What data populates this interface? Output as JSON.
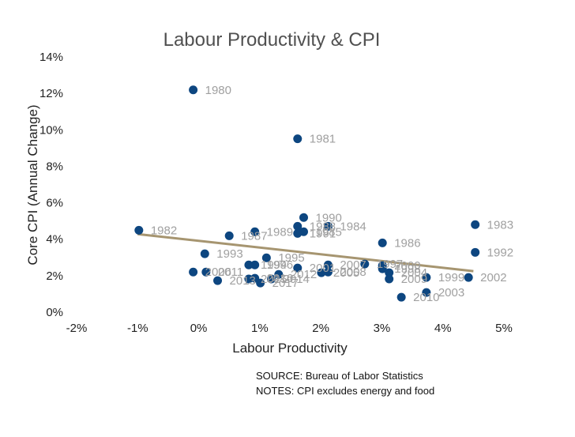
{
  "chart_data": {
    "type": "scatter",
    "title": "Labour Productivity & CPI",
    "xlabel": "Labour Productivity",
    "ylabel": "Core CPI (Annual Change)",
    "xlim": [
      -2,
      5
    ],
    "ylim": [
      0,
      14
    ],
    "xticks": [
      -2,
      -1,
      0,
      1,
      2,
      3,
      4,
      5
    ],
    "yticks": [
      0,
      2,
      4,
      6,
      8,
      10,
      12,
      14
    ],
    "xtick_labels": [
      "-2%",
      "-1%",
      "0%",
      "1%",
      "2%",
      "3%",
      "4%",
      "5%"
    ],
    "ytick_labels": [
      "0%",
      "2%",
      "4%",
      "6%",
      "8%",
      "10%",
      "12%",
      "14%"
    ],
    "grid": false,
    "point_color": "#0d4680",
    "label_color": "#a0a0a0",
    "trend_color": "#a69570",
    "trendline": {
      "x": [
        -1.0,
        4.5
      ],
      "y": [
        4.28,
        2.25
      ]
    },
    "points": [
      {
        "label": "1980",
        "x": -0.09,
        "y": 12.19
      },
      {
        "label": "1981",
        "x": 1.62,
        "y": 9.51
      },
      {
        "label": "1982",
        "x": -0.98,
        "y": 4.49
      },
      {
        "label": "1983",
        "x": 4.53,
        "y": 4.8
      },
      {
        "label": "1984",
        "x": 2.12,
        "y": 4.71
      },
      {
        "label": "1985",
        "x": 1.72,
        "y": 4.41
      },
      {
        "label": "1986",
        "x": 3.01,
        "y": 3.8
      },
      {
        "label": "1987",
        "x": 0.5,
        "y": 4.19
      },
      {
        "label": "1988",
        "x": 1.62,
        "y": 4.71
      },
      {
        "label": "1989",
        "x": 0.92,
        "y": 4.41
      },
      {
        "label": "1990",
        "x": 1.72,
        "y": 5.19
      },
      {
        "label": "1991",
        "x": 1.62,
        "y": 4.32
      },
      {
        "label": "1992",
        "x": 4.53,
        "y": 3.28
      },
      {
        "label": "1993",
        "x": 0.1,
        "y": 3.2
      },
      {
        "label": "1994",
        "x": 0.82,
        "y": 2.59
      },
      {
        "label": "1995",
        "x": 1.11,
        "y": 2.98
      },
      {
        "label": "1996",
        "x": 0.92,
        "y": 2.59
      },
      {
        "label": "1997",
        "x": 2.72,
        "y": 2.64
      },
      {
        "label": "1998",
        "x": 3.01,
        "y": 2.38
      },
      {
        "label": "1999",
        "x": 3.73,
        "y": 1.9
      },
      {
        "label": "2000",
        "x": 3.01,
        "y": 2.55
      },
      {
        "label": "2001",
        "x": 1.62,
        "y": 2.42
      },
      {
        "label": "2002",
        "x": 4.42,
        "y": 1.9
      },
      {
        "label": "2003",
        "x": 3.73,
        "y": 1.08
      },
      {
        "label": "2004",
        "x": 3.12,
        "y": 2.16
      },
      {
        "label": "2005",
        "x": 2.01,
        "y": 2.16
      },
      {
        "label": "2006",
        "x": -0.09,
        "y": 2.2
      },
      {
        "label": "2007",
        "x": 2.12,
        "y": 2.59
      },
      {
        "label": "2008",
        "x": 2.12,
        "y": 2.2
      },
      {
        "label": "2009",
        "x": 3.12,
        "y": 1.82
      },
      {
        "label": "2010",
        "x": 3.32,
        "y": 0.82
      },
      {
        "label": "2011",
        "x": 0.12,
        "y": 2.2
      },
      {
        "label": "2012",
        "x": 1.31,
        "y": 2.07
      },
      {
        "label": "2013",
        "x": 0.31,
        "y": 1.73
      },
      {
        "label": "2014",
        "x": 1.19,
        "y": 1.82
      },
      {
        "label": "2015",
        "x": 0.82,
        "y": 1.82
      },
      {
        "label": "2016",
        "x": 0.92,
        "y": 1.86
      },
      {
        "label": "2017",
        "x": 1.01,
        "y": 1.6
      }
    ],
    "annotations": [
      "SOURCE: Bureau of Labor Statistics",
      "NOTES: CPI excludes energy and food"
    ]
  }
}
